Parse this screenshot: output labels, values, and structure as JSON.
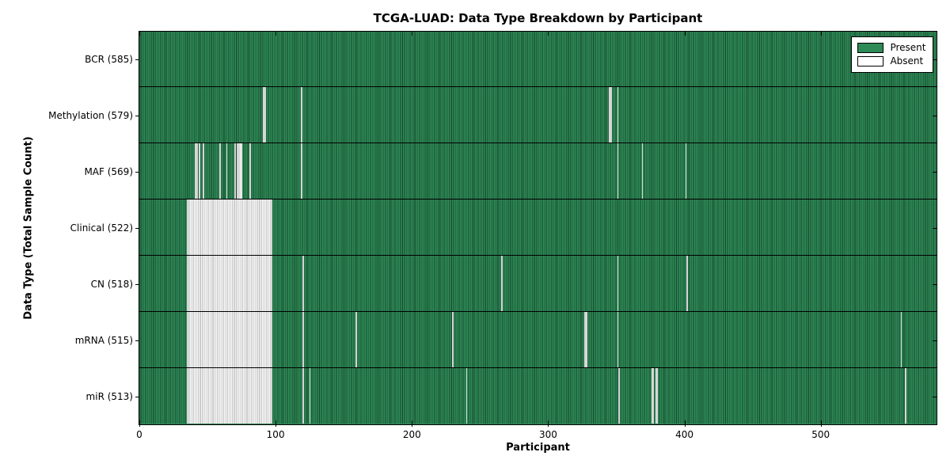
{
  "chart_data": {
    "type": "heatmap",
    "title": "TCGA-LUAD: Data Type Breakdown by Participant",
    "xlabel": "Participant",
    "ylabel": "Data Type (Total Sample Count)",
    "x_ticks": [
      0,
      100,
      200,
      300,
      400,
      500
    ],
    "xlim": [
      0,
      585
    ],
    "n_participants": 585,
    "grid": false,
    "colors": {
      "present": "#2e8b57",
      "absent": "#ffffff",
      "border": "#000000"
    },
    "legend": {
      "position": "upper right",
      "entries": [
        {
          "label": "Present",
          "color": "#2e8b57"
        },
        {
          "label": "Absent",
          "color": "#ffffff"
        }
      ]
    },
    "rows": [
      {
        "label": "BCR (585)",
        "data_type": "BCR",
        "total_samples": 585,
        "absent_count": 0,
        "absent_ranges": []
      },
      {
        "label": "Methylation (579)",
        "data_type": "Methylation",
        "total_samples": 579,
        "absent_count": 6,
        "absent_ranges": [
          [
            91,
            2
          ],
          [
            119,
            1
          ],
          [
            345,
            2
          ],
          [
            351,
            1
          ]
        ]
      },
      {
        "label": "MAF (569)",
        "data_type": "MAF",
        "total_samples": 569,
        "absent_count": 16,
        "absent_ranges": [
          [
            41,
            2
          ],
          [
            44,
            1
          ],
          [
            47,
            1
          ],
          [
            59,
            1
          ],
          [
            64,
            1
          ],
          [
            70,
            1
          ],
          [
            72,
            4
          ],
          [
            81,
            1
          ],
          [
            119,
            1
          ],
          [
            351,
            1
          ],
          [
            369,
            1
          ],
          [
            401,
            1
          ]
        ]
      },
      {
        "label": "Clinical (522)",
        "data_type": "Clinical",
        "total_samples": 522,
        "absent_count": 63,
        "absent_ranges": [
          [
            35,
            63
          ]
        ]
      },
      {
        "label": "CN (518)",
        "data_type": "CN",
        "total_samples": 518,
        "absent_count": 67,
        "absent_ranges": [
          [
            35,
            63
          ],
          [
            120,
            1
          ],
          [
            266,
            1
          ],
          [
            351,
            1
          ],
          [
            402,
            1
          ]
        ]
      },
      {
        "label": "mRNA (515)",
        "data_type": "mRNA",
        "total_samples": 515,
        "absent_count": 70,
        "absent_ranges": [
          [
            35,
            63
          ],
          [
            120,
            1
          ],
          [
            159,
            1
          ],
          [
            230,
            1
          ],
          [
            327,
            2
          ],
          [
            351,
            1
          ],
          [
            559,
            1
          ]
        ]
      },
      {
        "label": "miR (513)",
        "data_type": "miR",
        "total_samples": 513,
        "absent_count": 72,
        "absent_ranges": [
          [
            35,
            63
          ],
          [
            120,
            1
          ],
          [
            125,
            1
          ],
          [
            240,
            1
          ],
          [
            352,
            1
          ],
          [
            376,
            2
          ],
          [
            379,
            2
          ],
          [
            562,
            1
          ]
        ]
      }
    ]
  }
}
